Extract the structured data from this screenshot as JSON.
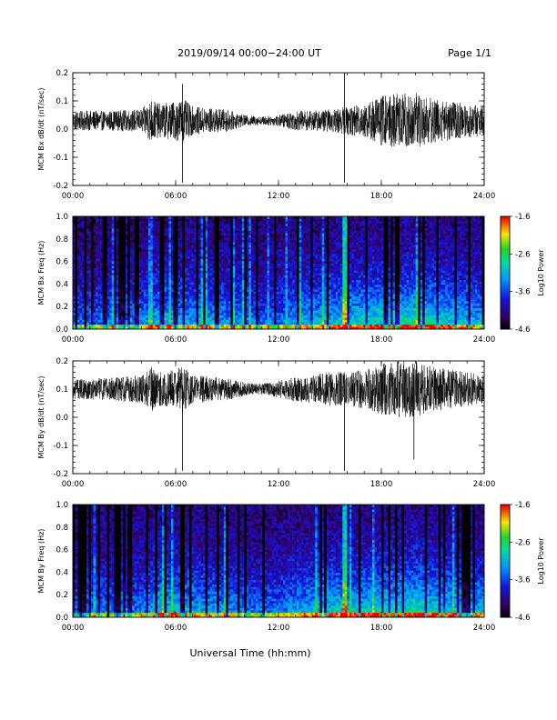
{
  "header": {
    "title": "2019/09/14  00:00−24:00 UT",
    "page": "Page 1/1"
  },
  "footer": {
    "xlabel": "Universal Time (hh:mm)"
  },
  "colorbar": {
    "label": "Log10 Power",
    "ticks": [
      "-1.6",
      "-2.6",
      "-3.6",
      "-4.6"
    ],
    "range": [
      -4.6,
      -1.6
    ]
  },
  "chart_data": [
    {
      "type": "line",
      "ylabel": "MCM Bx dB/dt (nT/sec)",
      "xlim": [
        0,
        24
      ],
      "ylim": [
        -0.2,
        0.2
      ],
      "xticks": [
        "00:00",
        "06:00",
        "12:00",
        "18:00",
        "24:00"
      ],
      "yticks": [
        "0.2",
        "0.1",
        "0.0",
        "-0.1",
        "-0.2"
      ],
      "baseline": 0.03,
      "envelope": {
        "hours": [
          0,
          2,
          4,
          4.6,
          5,
          6,
          6.4,
          7,
          8,
          9,
          10,
          11,
          12,
          13,
          14,
          15,
          16,
          17,
          18,
          19,
          20,
          21,
          22,
          23,
          24
        ],
        "amplitude": [
          0.035,
          0.035,
          0.04,
          0.08,
          0.06,
          0.07,
          0.08,
          0.05,
          0.045,
          0.04,
          0.02,
          0.015,
          0.02,
          0.035,
          0.035,
          0.04,
          0.05,
          0.06,
          0.09,
          0.1,
          0.1,
          0.08,
          0.07,
          0.06,
          0.055
        ]
      },
      "spikes": [
        {
          "hour": 6.4,
          "value": -0.19
        },
        {
          "hour": 6.4,
          "value": 0.16
        },
        {
          "hour": 15.85,
          "value": -0.19
        },
        {
          "hour": 15.85,
          "value": 0.2
        }
      ]
    },
    {
      "type": "heatmap",
      "ylabel": "MCM Bx Freq (Hz)",
      "xlim": [
        0,
        24
      ],
      "ylim": [
        0,
        1
      ],
      "xticks": [
        "00:00",
        "06:00",
        "12:00",
        "18:00",
        "24:00"
      ],
      "yticks": [
        "1.0",
        "0.8",
        "0.6",
        "0.4",
        "0.2",
        "0.0"
      ],
      "zlim": [
        -4.6,
        -1.6
      ]
    },
    {
      "type": "line",
      "ylabel": "MCM By dB/dt (nT/sec)",
      "xlim": [
        0,
        24
      ],
      "ylim": [
        -0.2,
        0.2
      ],
      "xticks": [
        "00:00",
        "06:00",
        "12:00",
        "18:00",
        "24:00"
      ],
      "yticks": [
        "0.2",
        "0.1",
        "0.0",
        "-0.1",
        "-0.2"
      ],
      "baseline": 0.1,
      "envelope": {
        "hours": [
          0,
          2,
          4,
          4.6,
          5,
          6,
          6.4,
          7,
          8,
          9,
          10,
          11,
          12,
          13,
          14,
          15,
          16,
          17,
          18,
          19,
          20,
          21,
          22,
          23,
          24
        ],
        "amplitude": [
          0.035,
          0.04,
          0.05,
          0.08,
          0.06,
          0.07,
          0.08,
          0.05,
          0.045,
          0.04,
          0.025,
          0.02,
          0.03,
          0.045,
          0.05,
          0.06,
          0.06,
          0.07,
          0.09,
          0.1,
          0.1,
          0.08,
          0.07,
          0.06,
          0.05
        ]
      },
      "spikes": [
        {
          "hour": 6.4,
          "value": -0.19
        },
        {
          "hour": 15.85,
          "value": -0.19
        },
        {
          "hour": 19.9,
          "value": -0.15
        }
      ]
    },
    {
      "type": "heatmap",
      "ylabel": "MCM By Freq (Hz)",
      "xlim": [
        0,
        24
      ],
      "ylim": [
        0,
        1
      ],
      "xticks": [
        "00:00",
        "06:00",
        "12:00",
        "18:00",
        "24:00"
      ],
      "yticks": [
        "1.0",
        "0.8",
        "0.6",
        "0.4",
        "0.2",
        "0.0"
      ],
      "zlim": [
        -4.6,
        -1.6
      ]
    }
  ]
}
